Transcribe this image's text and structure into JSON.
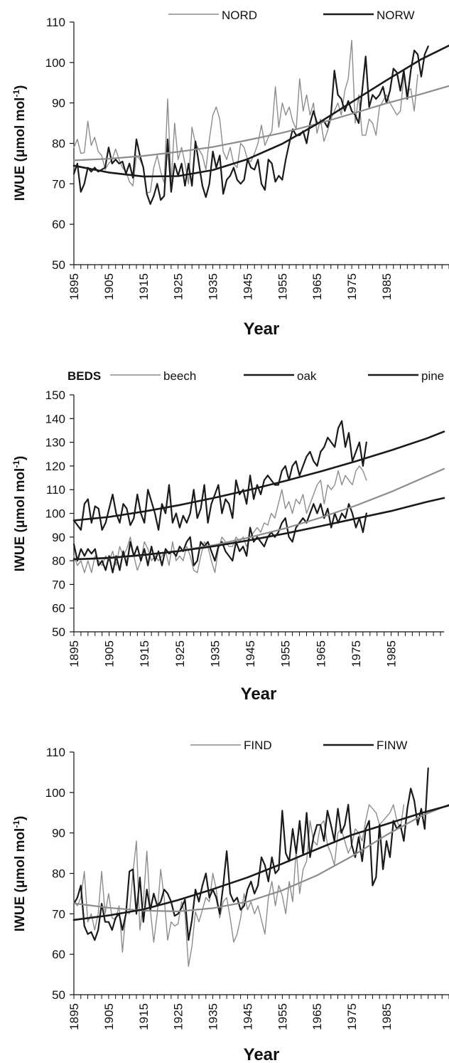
{
  "chart_data": [
    {
      "type": "line",
      "xlabel": "Year",
      "ylabel": "IWUE (μmol mol-1)",
      "legend_title": "",
      "legend_position": "top",
      "xlim": [
        1895,
        2003
      ],
      "ylim": [
        50,
        110
      ],
      "yticks": [
        50,
        60,
        70,
        80,
        90,
        100,
        110
      ],
      "xticks": [
        1895,
        1905,
        1915,
        1925,
        1935,
        1945,
        1955,
        1965,
        1975,
        1985
      ],
      "grid": false,
      "series": [
        {
          "name": "NORD",
          "color": "#8c8c8c",
          "style": "series",
          "x_start": 1895,
          "values": [
            79,
            81,
            77.5,
            77.7,
            85.5,
            79.5,
            81.5,
            78,
            77,
            73.5,
            75,
            76,
            78.6,
            76,
            74,
            73,
            70.5,
            69.5,
            77,
            76,
            74,
            67.7,
            68,
            74,
            77,
            73,
            70.2,
            91,
            70,
            85,
            76,
            79,
            75,
            70,
            84,
            80,
            78.5,
            77,
            73.5,
            81,
            87,
            89,
            86,
            78,
            76,
            79,
            75,
            74,
            80,
            79,
            76,
            75.5,
            77.5,
            80,
            84.5,
            79.5,
            81.5,
            83,
            94,
            84,
            90,
            87,
            89,
            85.5,
            83.5,
            96,
            88,
            92,
            87,
            90,
            82.5,
            86,
            80.5,
            83,
            86,
            88,
            90,
            87,
            93,
            96,
            105.5,
            85,
            92,
            82,
            82,
            86,
            85,
            82,
            89,
            90.5,
            92,
            90,
            88.5,
            87,
            88,
            96.5,
            93,
            93.5,
            88,
            97
          ]
        },
        {
          "name": "NORW",
          "color": "#1a1a1a",
          "style": "series",
          "x_start": 1895,
          "values": [
            72.5,
            75,
            68,
            70,
            74,
            73,
            74,
            73,
            73.5,
            74,
            79,
            75,
            76,
            75,
            75.5,
            72.5,
            75,
            71.5,
            81,
            77,
            74,
            67.5,
            65,
            67,
            70,
            66,
            67,
            81,
            68,
            75,
            72,
            75,
            69.5,
            75,
            69.5,
            80.5,
            75,
            69.5,
            66.7,
            70,
            78,
            74,
            77,
            67.5,
            71,
            72,
            74,
            71,
            70,
            71,
            76,
            74,
            73.5,
            76,
            70,
            68.5,
            76,
            75,
            70.5,
            72,
            71,
            76,
            80,
            83.5,
            82,
            82,
            83,
            80,
            85,
            88,
            85,
            85,
            85.5,
            84,
            87,
            98,
            92,
            91,
            88,
            90.5,
            88,
            87,
            85,
            93,
            101.5,
            89,
            92,
            91,
            92,
            94,
            90,
            93,
            98.5,
            97.5,
            93,
            98,
            91,
            98,
            103,
            102,
            96.5,
            102,
            104
          ]
        },
        {
          "name": "NORD trend",
          "color": "#8c8c8c",
          "style": "trend",
          "x": [
            1895,
            1905,
            1915,
            1925,
            1935,
            1945,
            1955,
            1965,
            1975,
            1985,
            1995,
            2003
          ],
          "values": [
            75.8,
            76.2,
            76.9,
            77.9,
            79.1,
            80.8,
            82.6,
            84.8,
            87.3,
            89.9,
            92.2,
            94.2
          ]
        },
        {
          "name": "NORW trend",
          "color": "#1a1a1a",
          "style": "trend",
          "x": [
            1895,
            1905,
            1915,
            1925,
            1935,
            1945,
            1955,
            1965,
            1975,
            1985,
            1995,
            2003
          ],
          "values": [
            74.5,
            72.8,
            71.8,
            71.9,
            73.4,
            76.1,
            79.9,
            84.8,
            90.2,
            95.6,
            100.8,
            104.2
          ]
        }
      ]
    },
    {
      "type": "line",
      "xlabel": "Year",
      "ylabel": "IWUE (μmol mol-1)",
      "legend_title": "BEDS",
      "legend_position": "top",
      "xlim": [
        1895,
        2000
      ],
      "ylim": [
        50,
        150
      ],
      "yticks": [
        50,
        60,
        70,
        80,
        90,
        100,
        110,
        120,
        130,
        140,
        150
      ],
      "xticks": [
        1895,
        1905,
        1915,
        1925,
        1935,
        1945,
        1955,
        1965,
        1975,
        1985
      ],
      "grid": false,
      "series": [
        {
          "name": "beech",
          "color": "#8c8c8c",
          "style": "series",
          "x_start": 1895,
          "values": [
            82,
            78,
            80,
            75,
            80,
            75,
            82,
            80,
            78,
            82,
            80,
            84,
            78,
            86,
            82,
            85,
            90,
            82,
            76,
            80,
            88,
            85,
            80,
            82,
            80,
            82,
            84,
            78,
            88,
            80,
            82,
            80,
            86,
            82,
            76,
            75,
            82,
            88,
            86,
            80,
            75,
            85,
            90,
            88,
            86,
            86,
            90,
            88,
            90,
            86,
            90,
            92,
            94,
            92,
            96,
            95,
            100,
            98,
            104,
            110,
            102,
            105,
            100,
            106,
            104,
            108,
            100,
            104,
            108,
            112,
            114,
            104,
            112,
            110,
            112,
            118,
            112,
            116,
            114,
            112,
            118,
            120,
            118,
            114
          ]
        },
        {
          "name": "oak",
          "color": "#1a1a1a",
          "style": "series",
          "x_start": 1895,
          "values": [
            87,
            80,
            85,
            82,
            85,
            83,
            85,
            78,
            80,
            76,
            82,
            75,
            82,
            76,
            84,
            78,
            88,
            82,
            86,
            80,
            85,
            78,
            86,
            80,
            84,
            78,
            85,
            83,
            84,
            82,
            86,
            84,
            88,
            90,
            78,
            80,
            88,
            86,
            88,
            84,
            80,
            86,
            88,
            84,
            82,
            80,
            88,
            84,
            86,
            82,
            94,
            88,
            90,
            88,
            86,
            90,
            92,
            90,
            92,
            96,
            98,
            90,
            88,
            94,
            96,
            98,
            96,
            100,
            104,
            100,
            104,
            98,
            102,
            94,
            100,
            96,
            100,
            98,
            104,
            100,
            94,
            98,
            92,
            100
          ]
        },
        {
          "name": "pine",
          "color": "#1a1a1a",
          "style": "series",
          "x_start": 1895,
          "values": [
            97,
            95,
            93,
            104,
            106,
            96,
            103,
            102,
            93,
            96,
            102,
            108,
            100,
            96,
            104,
            102,
            95,
            98,
            108,
            100,
            96,
            110,
            105,
            100,
            93,
            104,
            100,
            112,
            96,
            100,
            94,
            99,
            96,
            100,
            110,
            98,
            102,
            112,
            96,
            104,
            108,
            112,
            100,
            106,
            104,
            98,
            114,
            108,
            110,
            104,
            116,
            106,
            112,
            108,
            114,
            116,
            114,
            112,
            112,
            118,
            120,
            114,
            120,
            122,
            116,
            120,
            124,
            126,
            122,
            120,
            126,
            128,
            132,
            130,
            128,
            136,
            139,
            128,
            134,
            122,
            126,
            130,
            120,
            130
          ]
        },
        {
          "name": "beech trend",
          "color": "#8c8c8c",
          "style": "trend",
          "x": [
            1895,
            1905,
            1915,
            1925,
            1935,
            1945,
            1955,
            1965,
            1975,
            1985,
            1995,
            2000
          ],
          "values": [
            80.5,
            81,
            82.3,
            84.2,
            86.7,
            89.9,
            93.7,
            98.2,
            103.3,
            109.1,
            115.6,
            118.8
          ]
        },
        {
          "name": "oak trend",
          "color": "#1a1a1a",
          "style": "trend",
          "x": [
            1895,
            1905,
            1915,
            1925,
            1935,
            1945,
            1955,
            1965,
            1975,
            1985,
            1995,
            2000
          ],
          "values": [
            80.6,
            81.2,
            82.5,
            84.1,
            86.2,
            88.7,
            91.5,
            94.6,
            97.8,
            101,
            104.8,
            106.5
          ]
        },
        {
          "name": "pine trend",
          "color": "#1a1a1a",
          "style": "trend",
          "x": [
            1895,
            1905,
            1915,
            1925,
            1935,
            1945,
            1955,
            1965,
            1975,
            1985,
            1995,
            2000
          ],
          "values": [
            97,
            98.5,
            100.8,
            103.5,
            106.6,
            110,
            113.7,
            117.7,
            122,
            126.6,
            131.6,
            134.5
          ]
        }
      ]
    },
    {
      "type": "line",
      "xlabel": "Year",
      "ylabel": "IWUE (μmol mol-1)",
      "legend_title": "",
      "legend_position": "top",
      "xlim": [
        1895,
        2003
      ],
      "ylim": [
        50,
        110
      ],
      "yticks": [
        50,
        60,
        70,
        80,
        90,
        100,
        110
      ],
      "xticks": [
        1895,
        1905,
        1915,
        1925,
        1935,
        1945,
        1955,
        1965,
        1975,
        1985
      ],
      "grid": false,
      "series": [
        {
          "name": "FIND",
          "color": "#8c8c8c",
          "style": "series",
          "x_start": 1895,
          "values": [
            73,
            72,
            74,
            80.5,
            68,
            70,
            66,
            70,
            80.5,
            70,
            75,
            69,
            68.5,
            72,
            60.5,
            70.5,
            70,
            80,
            88,
            66,
            73,
            85.5,
            71,
            63,
            70,
            81,
            74,
            63.5,
            68,
            67,
            67.5,
            73,
            70,
            57,
            62,
            70.5,
            68,
            71,
            74,
            73,
            80,
            76,
            69,
            73,
            74,
            69,
            63,
            65,
            69,
            75,
            71,
            73,
            70,
            72,
            68.5,
            65,
            74,
            78,
            72,
            77,
            74.5,
            70,
            78,
            73,
            86,
            75,
            81,
            83,
            93,
            88,
            87,
            92,
            93,
            87,
            85,
            82,
            90,
            91,
            88,
            85,
            87,
            91,
            90,
            88,
            93,
            97,
            96,
            95,
            92,
            93,
            94,
            95,
            97,
            93,
            91,
            97
          ]
        },
        {
          "name": "FINW",
          "color": "#1a1a1a",
          "style": "series",
          "x_start": 1895,
          "values": [
            72.5,
            74,
            77,
            67,
            65,
            65.5,
            63.5,
            66,
            72.5,
            68,
            68,
            66,
            69,
            70,
            66,
            70,
            80.5,
            81,
            70,
            79,
            68,
            76,
            71,
            75,
            72,
            73,
            76,
            75,
            73,
            69.5,
            70,
            71.5,
            73.5,
            63.5,
            68.5,
            76,
            73,
            77,
            80,
            74,
            76,
            74,
            70,
            77,
            85.5,
            75,
            73,
            74,
            71,
            72,
            76,
            78,
            75,
            77,
            84,
            82,
            78,
            84,
            80,
            81,
            95.5,
            85,
            83,
            91,
            85,
            93,
            84.5,
            95,
            84,
            89,
            92,
            92,
            88,
            95.5,
            92,
            88,
            96,
            90,
            92,
            97,
            87,
            84,
            89,
            83,
            91,
            93,
            77,
            79,
            92,
            81,
            88,
            84,
            93,
            91,
            92,
            88,
            96,
            101,
            98,
            92,
            96,
            91,
            106
          ]
        },
        {
          "name": "FIND trend",
          "color": "#8c8c8c",
          "style": "trend",
          "x": [
            1895,
            1905,
            1915,
            1925,
            1935,
            1945,
            1955,
            1965,
            1975,
            1985,
            1995,
            2003
          ],
          "values": [
            72.6,
            71.5,
            70.8,
            70.6,
            71.4,
            73,
            75.8,
            79.5,
            84.2,
            89.5,
            94.2,
            97
          ]
        },
        {
          "name": "FINW trend",
          "color": "#1a1a1a",
          "style": "trend",
          "x": [
            1895,
            1905,
            1915,
            1925,
            1935,
            1945,
            1955,
            1965,
            1975,
            1985,
            1995,
            2003
          ],
          "values": [
            68.5,
            69.6,
            71.1,
            73.4,
            76.1,
            79,
            82.4,
            86,
            89.5,
            92.2,
            94.9,
            96.8
          ]
        }
      ]
    }
  ]
}
